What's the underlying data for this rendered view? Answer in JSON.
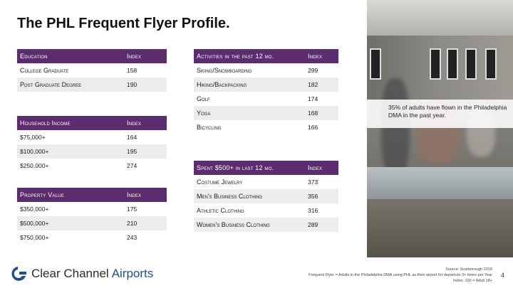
{
  "title": "The PHL Frequent Flyer Profile.",
  "education": {
    "header": [
      "Education",
      "Index"
    ],
    "rows": [
      [
        "College Graduate",
        "158"
      ],
      [
        "Post Graduate Degree",
        "190"
      ]
    ]
  },
  "income": {
    "header": [
      "Household Income",
      "Index"
    ],
    "rows": [
      [
        "$75,000+",
        "164"
      ],
      [
        "$100,000+",
        "195"
      ],
      [
        "$250,000+",
        "274"
      ]
    ]
  },
  "property": {
    "header": [
      "Property Value",
      "Index"
    ],
    "rows": [
      [
        "$350,000+",
        "175"
      ],
      [
        "$500,000+",
        "210"
      ],
      [
        "$750,000+",
        "243"
      ]
    ]
  },
  "activities": {
    "header": [
      "Activities in the past 12 mo.",
      "Index"
    ],
    "rows": [
      [
        "Skiing/Snowboarding",
        "299"
      ],
      [
        "Hiking/Backpacking",
        "182"
      ],
      [
        "Golf",
        "174"
      ],
      [
        "Yoga",
        "168"
      ],
      [
        "Bicycling",
        "166"
      ]
    ]
  },
  "spent": {
    "header": [
      "Spent $500+ in last 12 mo.",
      "Index"
    ],
    "rows": [
      [
        "Costume Jewelry",
        "373"
      ],
      [
        "Men's Business Clothing",
        "356"
      ],
      [
        "Athletic Clothing",
        "316"
      ],
      [
        "Women's Business Clothing",
        "289"
      ]
    ]
  },
  "callout": "35% of adults have flown in the Philadelphia DMA in the past year.",
  "logo": {
    "brand": "Clear Channel",
    "brand2": "Airports"
  },
  "footnote": {
    "line1": "Source: Scarborough 2018",
    "line2": "Frequent Flyer = Adults in the Philadelphia DMA using PHL as their airport for departure 3+ times per Year",
    "line3": "Index: 100 = Adult 18+"
  },
  "page_number": "4",
  "colors": {
    "header_bg": "#5c2d6e",
    "shade_bg": "#ececec",
    "brand_blue": "#1d4f8f"
  }
}
